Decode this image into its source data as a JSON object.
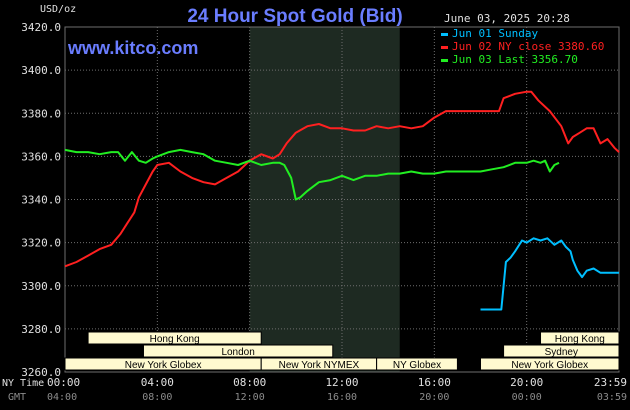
{
  "chart_data": {
    "type": "line",
    "title": "24 Hour Spot Gold (Bid)",
    "brand": "www.kitco.com",
    "timestamp": "June 03, 2025 20:28",
    "ylabel": "USD/oz",
    "ylim": [
      3260,
      3420
    ],
    "y_ticks": [
      "3420.0",
      "3400.0",
      "3380.0",
      "3360.0",
      "3340.0",
      "3320.0",
      "3300.0",
      "3280.0",
      "3260.0"
    ],
    "xlim": [
      0,
      24
    ],
    "x_ticks_ny": [
      "00:00",
      "04:00",
      "08:00",
      "12:00",
      "16:00",
      "20:00",
      "23:59"
    ],
    "x_ticks_gmt": [
      "04:00",
      "08:00",
      "12:00",
      "16:00",
      "20:00",
      "00:00",
      "03:59"
    ],
    "x_row_labels": {
      "ny": "NY Time",
      "gmt": "GMT"
    },
    "grid": true,
    "legend_position": "top-right",
    "highlight_band": [
      8.0,
      14.5
    ],
    "series": [
      {
        "name": "Jun 01 Sunday",
        "color": "#00bfff",
        "points": [
          [
            18.0,
            3289
          ],
          [
            18.9,
            3289
          ],
          [
            19.0,
            3300
          ],
          [
            19.1,
            3311
          ],
          [
            19.3,
            3313
          ],
          [
            19.5,
            3316
          ],
          [
            19.8,
            3321
          ],
          [
            20.0,
            3320
          ],
          [
            20.3,
            3322
          ],
          [
            20.6,
            3321
          ],
          [
            20.9,
            3322
          ],
          [
            21.2,
            3319
          ],
          [
            21.5,
            3321
          ],
          [
            21.7,
            3318
          ],
          [
            21.9,
            3316
          ],
          [
            22.0,
            3312
          ],
          [
            22.2,
            3307
          ],
          [
            22.4,
            3304
          ],
          [
            22.6,
            3307
          ],
          [
            22.9,
            3308
          ],
          [
            23.2,
            3306
          ],
          [
            23.5,
            3306
          ],
          [
            23.8,
            3306
          ],
          [
            24.0,
            3306
          ]
        ]
      },
      {
        "name": "Jun 02 NY close 3380.60",
        "color": "#ff2020",
        "points": [
          [
            0.0,
            3309
          ],
          [
            0.5,
            3311
          ],
          [
            1.0,
            3314
          ],
          [
            1.5,
            3317
          ],
          [
            2.0,
            3319
          ],
          [
            2.4,
            3324
          ],
          [
            2.7,
            3329
          ],
          [
            3.0,
            3334
          ],
          [
            3.2,
            3341
          ],
          [
            3.5,
            3347
          ],
          [
            3.8,
            3353
          ],
          [
            4.0,
            3356
          ],
          [
            4.5,
            3357
          ],
          [
            5.0,
            3353
          ],
          [
            5.5,
            3350
          ],
          [
            6.0,
            3348
          ],
          [
            6.5,
            3347
          ],
          [
            7.0,
            3350
          ],
          [
            7.5,
            3353
          ],
          [
            8.0,
            3358
          ],
          [
            8.5,
            3361
          ],
          [
            9.0,
            3359
          ],
          [
            9.3,
            3361
          ],
          [
            9.6,
            3366
          ],
          [
            10.0,
            3371
          ],
          [
            10.5,
            3374
          ],
          [
            11.0,
            3375
          ],
          [
            11.5,
            3373
          ],
          [
            12.0,
            3373
          ],
          [
            12.5,
            3372
          ],
          [
            13.0,
            3372
          ],
          [
            13.5,
            3374
          ],
          [
            14.0,
            3373
          ],
          [
            14.5,
            3374
          ],
          [
            15.0,
            3373
          ],
          [
            15.5,
            3374
          ],
          [
            16.0,
            3378
          ],
          [
            16.5,
            3381
          ],
          [
            17.0,
            3381
          ],
          [
            17.5,
            3381
          ],
          [
            18.0,
            3381
          ],
          [
            18.5,
            3381
          ],
          [
            18.8,
            3381
          ],
          [
            19.0,
            3387
          ],
          [
            19.5,
            3389
          ],
          [
            20.0,
            3390
          ],
          [
            20.2,
            3390
          ],
          [
            20.5,
            3386
          ],
          [
            21.0,
            3381
          ],
          [
            21.5,
            3374
          ],
          [
            21.8,
            3366
          ],
          [
            22.0,
            3369
          ],
          [
            22.3,
            3371
          ],
          [
            22.6,
            3373
          ],
          [
            22.9,
            3373
          ],
          [
            23.2,
            3366
          ],
          [
            23.5,
            3368
          ],
          [
            23.8,
            3364
          ],
          [
            24.0,
            3362
          ]
        ]
      },
      {
        "name": "Jun 03 Last 3356.70",
        "color": "#22ee22",
        "points": [
          [
            0.0,
            3363
          ],
          [
            0.5,
            3362
          ],
          [
            1.0,
            3362
          ],
          [
            1.5,
            3361
          ],
          [
            2.0,
            3362
          ],
          [
            2.3,
            3362
          ],
          [
            2.6,
            3358
          ],
          [
            2.9,
            3362
          ],
          [
            3.2,
            3358
          ],
          [
            3.5,
            3357
          ],
          [
            3.8,
            3359
          ],
          [
            4.0,
            3360
          ],
          [
            4.5,
            3362
          ],
          [
            5.0,
            3363
          ],
          [
            5.5,
            3362
          ],
          [
            6.0,
            3361
          ],
          [
            6.5,
            3358
          ],
          [
            7.0,
            3357
          ],
          [
            7.5,
            3356
          ],
          [
            8.0,
            3358
          ],
          [
            8.5,
            3356
          ],
          [
            9.0,
            3357
          ],
          [
            9.3,
            3357
          ],
          [
            9.5,
            3356
          ],
          [
            9.8,
            3350
          ],
          [
            10.0,
            3340
          ],
          [
            10.2,
            3341
          ],
          [
            10.5,
            3344
          ],
          [
            11.0,
            3348
          ],
          [
            11.5,
            3349
          ],
          [
            12.0,
            3351
          ],
          [
            12.5,
            3349
          ],
          [
            13.0,
            3351
          ],
          [
            13.5,
            3351
          ],
          [
            14.0,
            3352
          ],
          [
            14.5,
            3352
          ],
          [
            15.0,
            3353
          ],
          [
            15.5,
            3352
          ],
          [
            16.0,
            3352
          ],
          [
            16.5,
            3353
          ],
          [
            17.0,
            3353
          ],
          [
            17.5,
            3353
          ],
          [
            18.0,
            3353
          ],
          [
            18.5,
            3354
          ],
          [
            19.0,
            3355
          ],
          [
            19.5,
            3357
          ],
          [
            20.0,
            3357
          ],
          [
            20.3,
            3358
          ],
          [
            20.6,
            3357
          ],
          [
            20.8,
            3358
          ],
          [
            21.0,
            3353
          ],
          [
            21.2,
            3356
          ],
          [
            21.4,
            3357
          ]
        ]
      }
    ],
    "sessions": [
      {
        "label": "Hong Kong",
        "start": 1.0,
        "end": 8.5,
        "row": 1
      },
      {
        "label": "London",
        "start": 3.4,
        "end": 11.6,
        "row": 2
      },
      {
        "label": "New York Globex",
        "start": 0.0,
        "end": 8.5,
        "row": 3
      },
      {
        "label": "New York NYMEX",
        "start": 8.5,
        "end": 13.5,
        "row": 3
      },
      {
        "label": "NY Globex",
        "start": 13.5,
        "end": 17.0,
        "row": 3
      },
      {
        "label": "Hong Kong",
        "start": 20.6,
        "end": 24.0,
        "row": 1
      },
      {
        "label": "Sydney",
        "start": 19.0,
        "end": 24.0,
        "row": 2
      },
      {
        "label": "New York Globex",
        "start": 18.0,
        "end": 24.0,
        "row": 3
      }
    ],
    "colors": {
      "background": "#000000",
      "grid": "#6e6e6e",
      "band": "#1e2a22",
      "axis_text": "#e0e0e0",
      "session_fill": "#fffad0"
    }
  }
}
